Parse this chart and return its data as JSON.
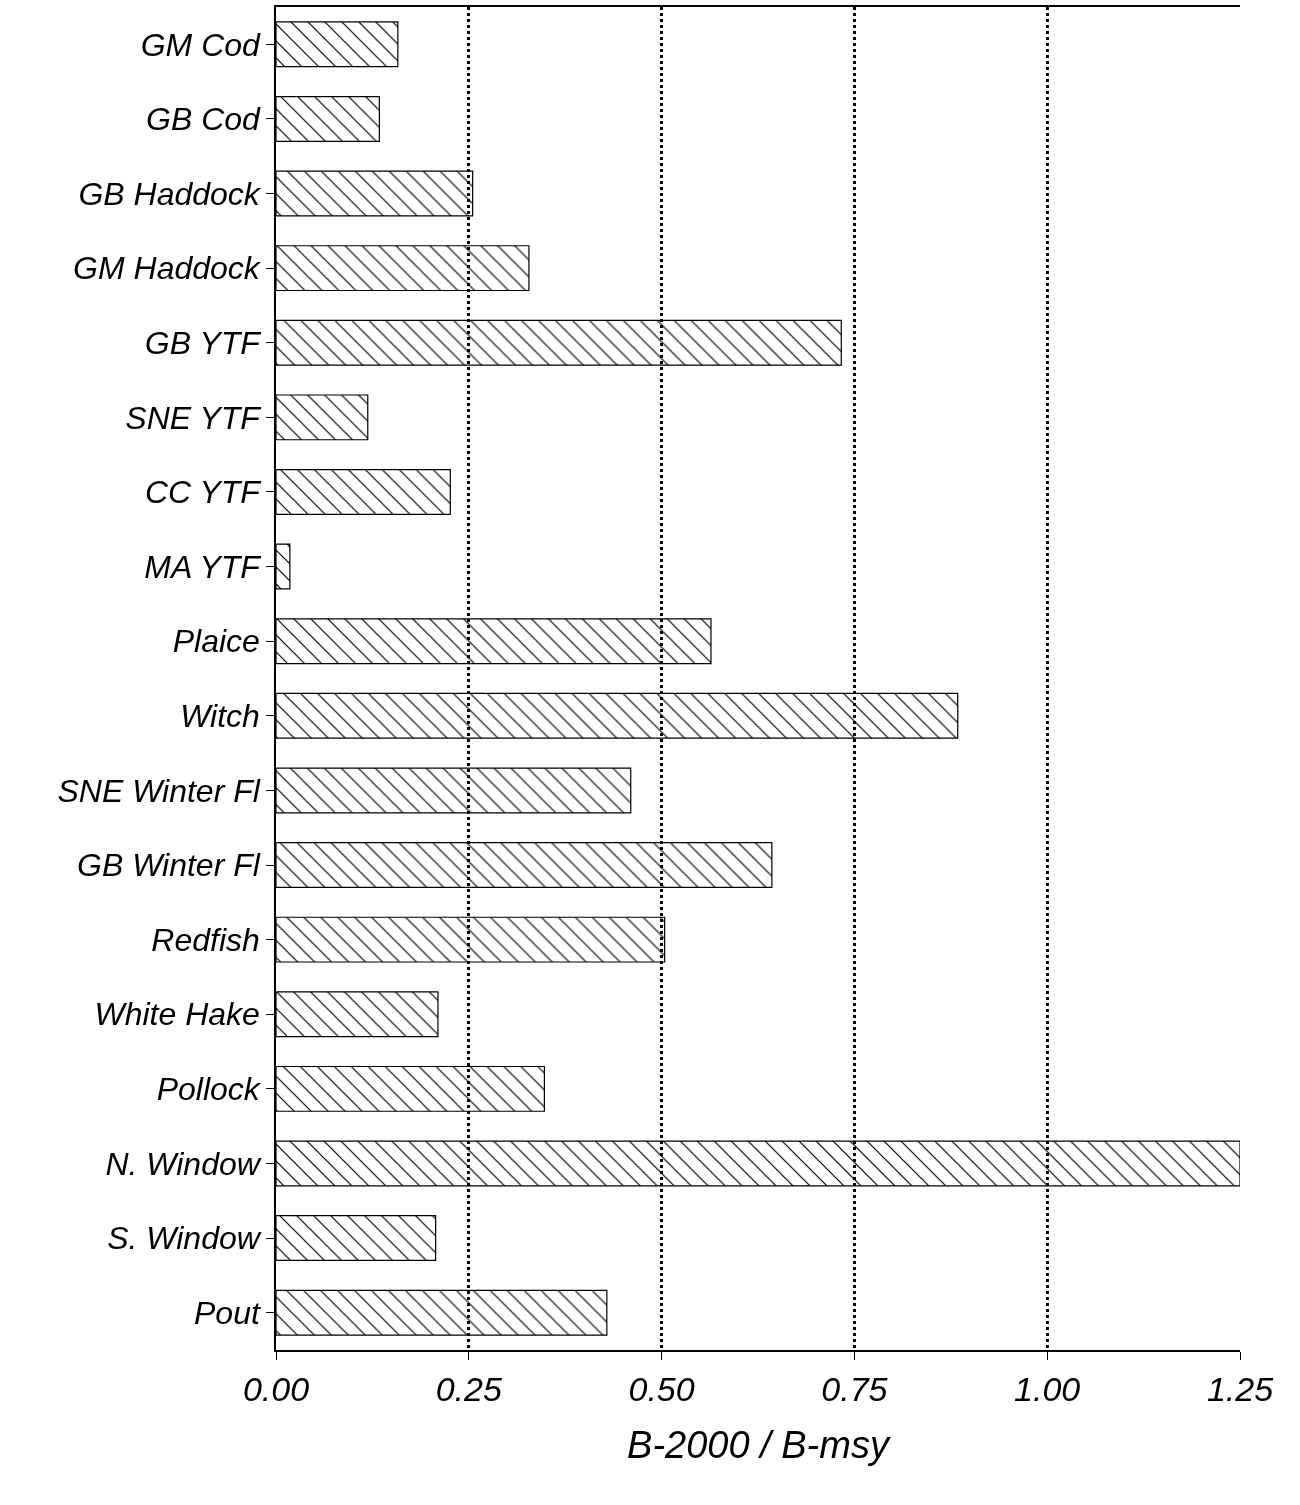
{
  "chart_data": {
    "type": "bar",
    "orientation": "horizontal",
    "xlabel": "B-2000 / B-msy",
    "categories": [
      "GM Cod",
      "GB Cod",
      "GB Haddock",
      "GM Haddock",
      "GB YTF",
      "SNE YTF",
      "CC YTF",
      "MA YTF",
      "Plaice",
      "Witch",
      "SNE Winter Fl",
      "GB Winter Fl",
      "Redfish",
      "White Hake",
      "Pollock",
      "N. Window",
      "S. Window",
      "Pout"
    ],
    "values": [
      0.158,
      0.134,
      0.255,
      0.328,
      0.733,
      0.119,
      0.226,
      0.018,
      0.564,
      0.884,
      0.46,
      0.643,
      0.504,
      0.21,
      0.348,
      1.25,
      0.207,
      0.429
    ],
    "color": "#000000",
    "xlim": [
      0,
      1.25
    ],
    "xticks": [
      {
        "value": 0,
        "label": "0.00"
      },
      {
        "value": 0.25,
        "label": "0.25"
      },
      {
        "value": 0.5,
        "label": "0.50"
      },
      {
        "value": 0.75,
        "label": "0.75"
      },
      {
        "value": 1,
        "label": "1.00"
      },
      {
        "value": 1.25,
        "label": "1.25"
      }
    ],
    "grid": "x"
  }
}
